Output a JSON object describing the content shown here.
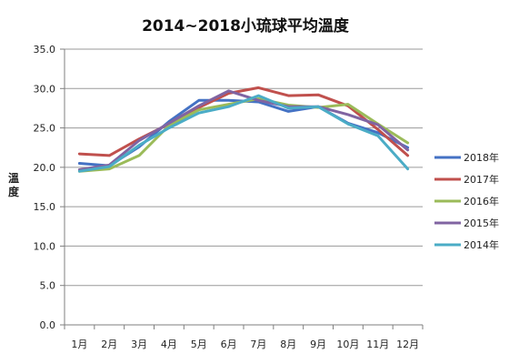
{
  "chart_data": {
    "type": "line",
    "title": "2014~2018小琉球平均溫度",
    "ylabel": "溫\n度",
    "xlabel": "",
    "categories": [
      "1月",
      "2月",
      "3月",
      "4月",
      "5月",
      "6月",
      "7月",
      "8月",
      "9月",
      "10月",
      "11月",
      "12月"
    ],
    "ylim": [
      0,
      35
    ],
    "yticks": [
      0,
      5,
      10,
      15,
      20,
      25,
      30,
      35
    ],
    "ytick_labels": [
      "0.0",
      "5.0",
      "10.0",
      "15.0",
      "20.0",
      "25.0",
      "30.0",
      "35.0"
    ],
    "grid": true,
    "legend_position": "right",
    "series": [
      {
        "name": "2018年",
        "color": "#4472C4",
        "values": [
          20.5,
          20.2,
          22.6,
          25.8,
          28.5,
          28.5,
          28.3,
          27.1,
          27.7,
          25.6,
          24.4,
          22.5
        ]
      },
      {
        "name": "2017年",
        "color": "#C0504D",
        "values": [
          21.7,
          21.5,
          23.6,
          25.5,
          27.6,
          29.4,
          30.1,
          29.1,
          29.2,
          27.8,
          24.8,
          21.5
        ]
      },
      {
        "name": "2016年",
        "color": "#9BBB59",
        "values": [
          19.5,
          19.8,
          21.5,
          25.3,
          27.3,
          28.0,
          28.7,
          27.9,
          27.6,
          28.0,
          25.5,
          23.1
        ]
      },
      {
        "name": "2015年",
        "color": "#8064A2",
        "values": [
          19.7,
          20.3,
          23.4,
          25.6,
          27.8,
          29.7,
          28.5,
          27.7,
          27.7,
          26.7,
          25.4,
          22.2
        ]
      },
      {
        "name": "2014年",
        "color": "#4BACC6",
        "values": [
          19.5,
          20.1,
          22.8,
          25.0,
          26.9,
          27.7,
          29.1,
          27.5,
          27.7,
          25.5,
          24.0,
          19.8
        ]
      }
    ]
  }
}
